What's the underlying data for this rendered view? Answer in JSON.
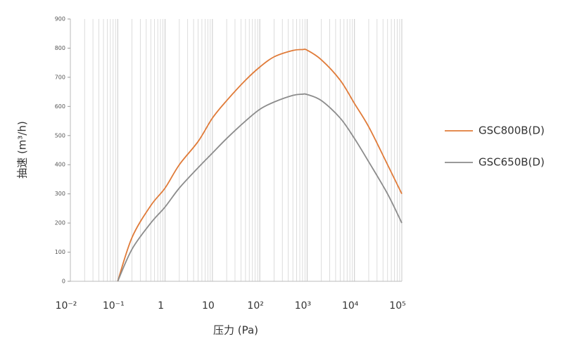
{
  "chart_data": {
    "type": "line",
    "title": null,
    "x_label": "压力 (Pa)",
    "y_label": "抽速 (m³/h)",
    "log_x": true,
    "x": [
      0.1,
      0.2,
      0.5,
      1,
      2,
      5,
      10,
      20,
      50,
      100,
      200,
      500,
      800,
      1000,
      2000,
      5000,
      10000,
      20000,
      50000,
      100000
    ],
    "series": [
      {
        "name": "GSC800B(D)",
        "color": "#e07b39",
        "values": [
          0,
          150,
          260,
          320,
          400,
          480,
          560,
          620,
          690,
          735,
          770,
          792,
          795,
          793,
          760,
          690,
          610,
          530,
          400,
          300
        ]
      },
      {
        "name": "GSC650B(D)",
        "color": "#8c8c8c",
        "values": [
          0,
          110,
          200,
          255,
          320,
          390,
          440,
          490,
          550,
          590,
          615,
          638,
          642,
          641,
          620,
          560,
          490,
          410,
          300,
          200
        ]
      }
    ],
    "xlim": [
      0.01,
      100000
    ],
    "xticks": [
      {
        "value": 0.01,
        "label": "10⁻²"
      },
      {
        "value": 0.1,
        "label": "10⁻¹"
      },
      1,
      10,
      {
        "value": 100,
        "label": "10²"
      },
      {
        "value": 1000,
        "label": "10³"
      },
      {
        "value": 10000,
        "label": "10⁴"
      },
      {
        "value": 100000,
        "label": "10⁵"
      }
    ],
    "ylim": [
      0,
      900
    ],
    "yticks": [
      0,
      100,
      200,
      300,
      400,
      500,
      600,
      700,
      800,
      900
    ],
    "grid": true,
    "legend": "right"
  }
}
